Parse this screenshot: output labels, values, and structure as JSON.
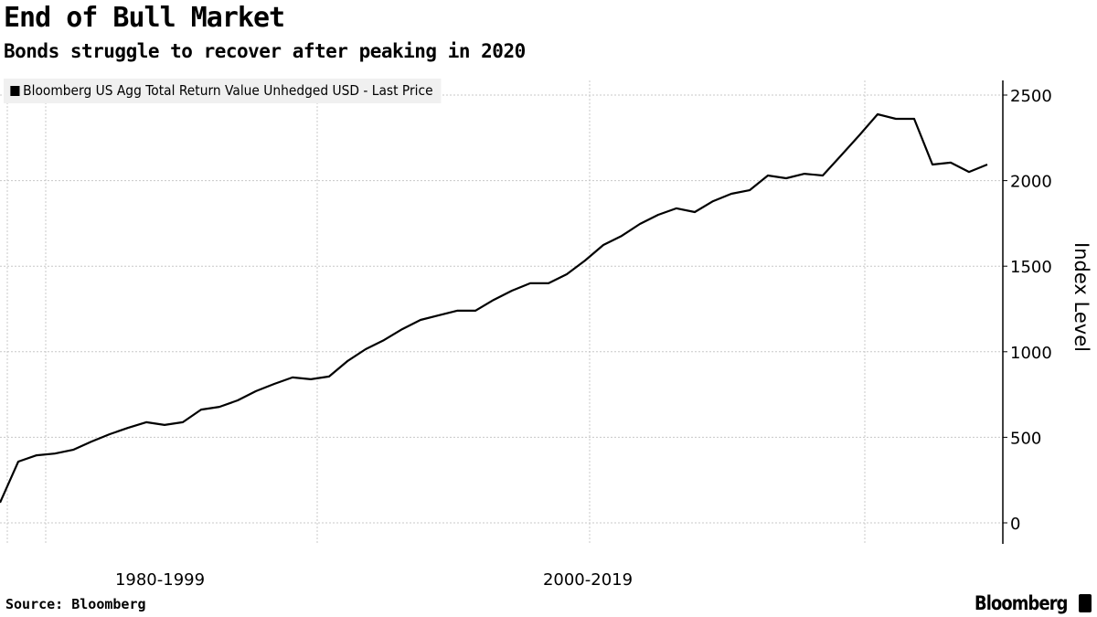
{
  "chart_data": {
    "type": "line",
    "title": "End of Bull Market",
    "subtitle": "Bonds struggle to recover after peaking in 2020",
    "ylabel": "Index Level",
    "ylim": [
      -100,
      2600
    ],
    "yticks": [
      "0",
      "500",
      "1000",
      "1500",
      "2000",
      "2500"
    ],
    "xtick_labels": [
      "1980-1999",
      "2000-2019"
    ],
    "grid": true,
    "legend_position": "top-left",
    "series": [
      {
        "name": "Bloomberg US Agg Total Return Value Unhedged USD - Last Price",
        "color": "#000000",
        "values": [
          118,
          358,
          395,
          405,
          427,
          475,
          518,
          555,
          588,
          572,
          588,
          662,
          678,
          716,
          770,
          812,
          850,
          839,
          855,
          945,
          1015,
          1068,
          1132,
          1186,
          1213,
          1240,
          1240,
          1303,
          1357,
          1400,
          1400,
          1453,
          1533,
          1624,
          1677,
          1747,
          1800,
          1838,
          1816,
          1880,
          1923,
          1944,
          2030,
          2014,
          2040,
          2030,
          2147,
          2265,
          2388,
          2361,
          2361,
          2094,
          2105,
          2051,
          2094
        ]
      }
    ]
  },
  "footer": {
    "source": "Source: Bloomberg",
    "brand": "Bloomberg"
  }
}
